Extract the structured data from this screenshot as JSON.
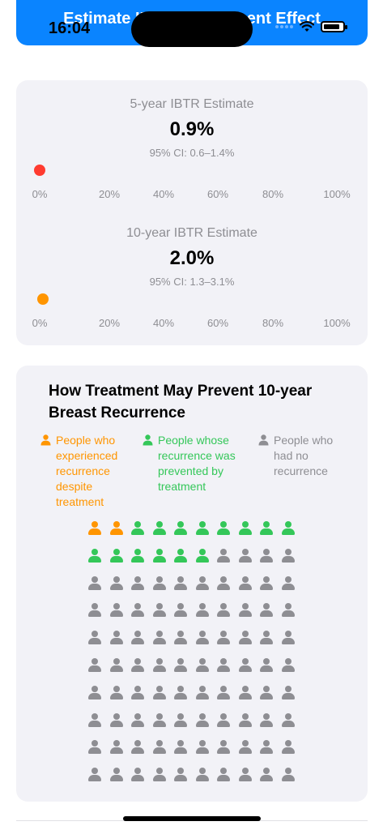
{
  "status_bar": {
    "time": "16:04"
  },
  "header": {
    "title": "Estimate IBTR & Treatment Effect"
  },
  "estimates": [
    {
      "label": "5-year IBTR Estimate",
      "value": "0.9%",
      "ci": "95% CI: 0.6–1.4%",
      "percent": 0.9,
      "color": "#ff3b30"
    },
    {
      "label": "10-year IBTR Estimate",
      "value": "2.0%",
      "ci": "95% CI: 1.3–3.1%",
      "percent": 2.0,
      "color": "#ff9500"
    }
  ],
  "axis_ticks": [
    "0%",
    "20%",
    "40%",
    "60%",
    "80%",
    "100%"
  ],
  "treatment": {
    "title": "How Treatment May Prevent 10-year Breast Recurrence",
    "legend": [
      {
        "text": "People who experienced recurrence despite treatment",
        "color": "#ff9500",
        "icon": "person-icon"
      },
      {
        "text": "People whose recurrence was prevented by treatment",
        "color": "#34c759",
        "icon": "person-icon"
      },
      {
        "text": "People who had no recurrence",
        "color": "#8e8e93",
        "icon": "person-icon"
      }
    ],
    "grid": {
      "total": 100,
      "columns": 10,
      "recurred_despite_treatment": 2,
      "prevented_by_treatment": 14,
      "no_recurrence": 84
    }
  }
}
